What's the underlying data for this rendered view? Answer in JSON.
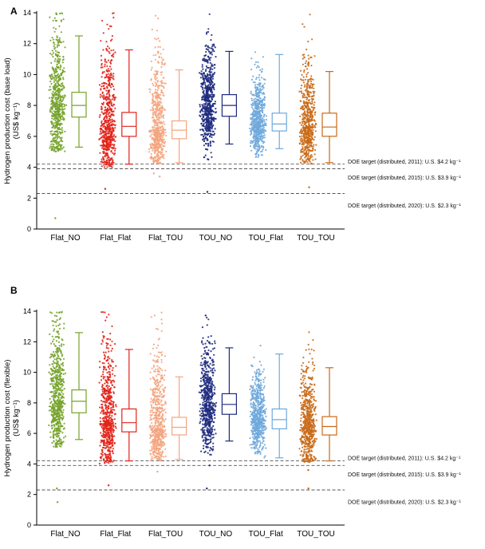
{
  "figure": {
    "background": "#ffffff"
  },
  "chart_data": [
    {
      "type": "box",
      "panel_label": "A",
      "ylabel": "Hydrogen production cost (base load)",
      "ylabel_units": "(US$ kg⁻¹)",
      "ylim": [
        0,
        14
      ],
      "yticks": [
        0,
        2,
        4,
        6,
        8,
        10,
        12,
        14
      ],
      "grid": false,
      "categories": [
        "Flat_NO",
        "Flat_Flat",
        "Flat_TOU",
        "TOU_NO",
        "TOU_Flat",
        "TOU_TOU"
      ],
      "series": [
        {
          "name": "Flat_NO",
          "color": "#76a32b",
          "whisker_low": 5.3,
          "q1": 7.25,
          "median": 8.0,
          "q3": 8.85,
          "whisker_high": 12.5,
          "center": 8.1,
          "sd": 1.65,
          "tail": 1.55,
          "low": 5.0,
          "cap": 14,
          "n_points": 620,
          "outliers": [
            0.7
          ]
        },
        {
          "name": "Flat_Flat",
          "color": "#e2231a",
          "whisker_low": 4.2,
          "q1": 6.0,
          "median": 6.65,
          "q3": 7.55,
          "whisker_high": 11.6,
          "center": 6.8,
          "sd": 1.5,
          "tail": 1.8,
          "low": 4.0,
          "cap": 14,
          "n_points": 620,
          "outliers": [
            2.6
          ]
        },
        {
          "name": "Flat_TOU",
          "color": "#f4a57f",
          "whisker_low": 4.3,
          "q1": 5.85,
          "median": 6.4,
          "q3": 7.0,
          "whisker_high": 10.3,
          "center": 6.45,
          "sd": 1.15,
          "tail": 2.1,
          "low": 4.2,
          "cap": 14,
          "n_points": 600,
          "outliers": [
            3.4,
            3.6
          ]
        },
        {
          "name": "TOU_NO",
          "color": "#1f2b7e",
          "whisker_low": 5.5,
          "q1": 7.3,
          "median": 8.0,
          "q3": 8.7,
          "whisker_high": 11.5,
          "center": 8.0,
          "sd": 1.45,
          "tail": 1.4,
          "low": 4.4,
          "cap": 14,
          "n_points": 620,
          "outliers": [
            2.4,
            4.5
          ]
        },
        {
          "name": "TOU_Flat",
          "color": "#6fa8dc",
          "whisker_low": 5.2,
          "q1": 6.35,
          "median": 6.8,
          "q3": 7.5,
          "whisker_high": 11.3,
          "center": 6.9,
          "sd": 1.05,
          "tail": 1.5,
          "low": 4.6,
          "cap": 12.0,
          "n_points": 600,
          "outliers": []
        },
        {
          "name": "TOU_TOU",
          "color": "#c96a18",
          "whisker_low": 4.3,
          "q1": 6.0,
          "median": 6.6,
          "q3": 7.5,
          "whisker_high": 10.2,
          "center": 6.7,
          "sd": 1.3,
          "tail": 1.6,
          "low": 4.2,
          "cap": 14,
          "n_points": 600,
          "outliers": [
            2.7
          ]
        }
      ],
      "reference_lines": [
        {
          "y": 4.2,
          "label": "DOE target (distributed, 2011): U.S. $4.2 kg⁻¹",
          "label_y": 4.35
        },
        {
          "y": 3.9,
          "label": "DOE target (distributed, 2015): U.S. $3.9 kg⁻¹",
          "label_y": 3.3
        },
        {
          "y": 2.3,
          "label": "DOE target (distributed, 2020): U.S. $2.3 kg⁻¹",
          "label_y": 1.5
        }
      ]
    },
    {
      "type": "box",
      "panel_label": "B",
      "ylabel": "Hydrogen production cost (flexible)",
      "ylabel_units": "(US$ kg⁻¹)",
      "ylim": [
        0,
        14
      ],
      "yticks": [
        0,
        2,
        4,
        6,
        8,
        10,
        12,
        14
      ],
      "grid": false,
      "categories": [
        "Flat_NO",
        "Flat_Flat",
        "Flat_TOU",
        "TOU_NO",
        "TOU_Flat",
        "TOU_TOU"
      ],
      "series": [
        {
          "name": "Flat_NO",
          "color": "#76a32b",
          "whisker_low": 5.6,
          "q1": 7.35,
          "median": 8.1,
          "q3": 8.85,
          "whisker_high": 12.6,
          "center": 8.15,
          "sd": 1.6,
          "tail": 1.55,
          "low": 5.1,
          "cap": 14,
          "n_points": 620,
          "outliers": [
            1.5,
            2.4
          ]
        },
        {
          "name": "Flat_Flat",
          "color": "#e2231a",
          "whisker_low": 4.2,
          "q1": 6.1,
          "median": 6.7,
          "q3": 7.6,
          "whisker_high": 11.5,
          "center": 6.85,
          "sd": 1.5,
          "tail": 1.8,
          "low": 4.0,
          "cap": 14,
          "n_points": 620,
          "outliers": [
            2.6
          ]
        },
        {
          "name": "Flat_TOU",
          "color": "#f4a57f",
          "whisker_low": 4.3,
          "q1": 5.9,
          "median": 6.4,
          "q3": 7.05,
          "whisker_high": 9.7,
          "center": 6.45,
          "sd": 1.15,
          "tail": 2.1,
          "low": 4.2,
          "cap": 14,
          "n_points": 600,
          "outliers": [
            3.5
          ]
        },
        {
          "name": "TOU_NO",
          "color": "#1f2b7e",
          "whisker_low": 5.5,
          "q1": 7.25,
          "median": 7.9,
          "q3": 8.6,
          "whisker_high": 11.6,
          "center": 7.95,
          "sd": 1.45,
          "tail": 1.4,
          "low": 4.4,
          "cap": 14,
          "n_points": 620,
          "outliers": [
            2.4,
            3.9
          ]
        },
        {
          "name": "TOU_Flat",
          "color": "#6fa8dc",
          "whisker_low": 4.4,
          "q1": 6.3,
          "median": 6.9,
          "q3": 7.6,
          "whisker_high": 11.2,
          "center": 6.95,
          "sd": 1.1,
          "tail": 1.5,
          "low": 4.4,
          "cap": 12.0,
          "n_points": 600,
          "outliers": []
        },
        {
          "name": "TOU_TOU",
          "color": "#c96a18",
          "whisker_low": 4.2,
          "q1": 5.9,
          "median": 6.45,
          "q3": 7.1,
          "whisker_high": 10.3,
          "center": 6.55,
          "sd": 1.3,
          "tail": 1.6,
          "low": 4.1,
          "cap": 14,
          "n_points": 600,
          "outliers": [
            2.4,
            3.6
          ]
        }
      ],
      "reference_lines": [
        {
          "y": 4.2,
          "label": "DOE target (distributed, 2011): U.S. $4.2 kg⁻¹",
          "label_y": 4.35
        },
        {
          "y": 3.9,
          "label": "DOE target (distributed, 2015): U.S. $3.9 kg⁻¹",
          "label_y": 3.3
        },
        {
          "y": 2.3,
          "label": "DOE target (distributed, 2020): U.S. $2.3 kg⁻¹",
          "label_y": 1.5
        }
      ]
    }
  ]
}
